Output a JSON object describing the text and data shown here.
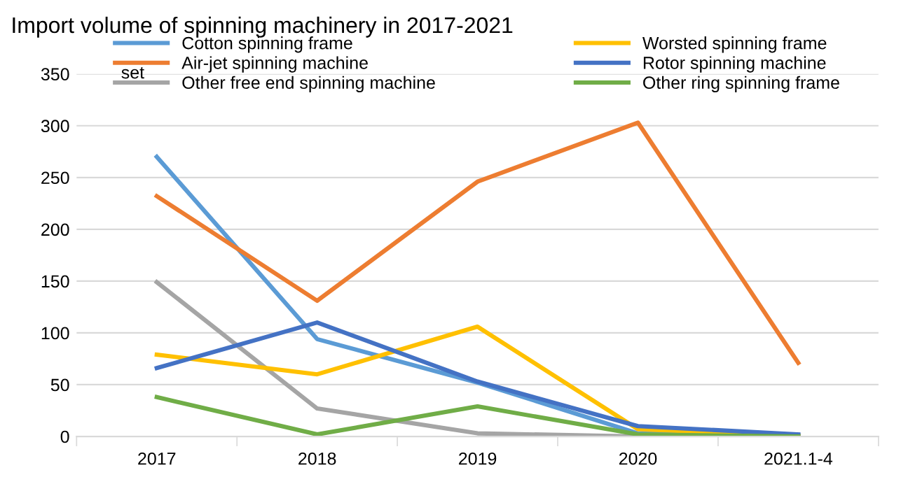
{
  "chart_data": {
    "type": "line",
    "title": "Import volume of spinning machinery in 2017-2021",
    "ylabel": "set",
    "categories": [
      "2017",
      "2018",
      "2019",
      "2020",
      "2021.1-4"
    ],
    "series": [
      {
        "name": "Cotton spinning frame",
        "color": "#5b9bd5",
        "values": [
          270,
          94,
          52,
          3,
          1
        ]
      },
      {
        "name": "Air-jet spinning machine",
        "color": "#ed7d31",
        "values": [
          232,
          131,
          246,
          303,
          71
        ]
      },
      {
        "name": "Other free end spinning machine",
        "color": "#a5a5a5",
        "values": [
          149,
          27,
          3,
          0,
          0
        ]
      },
      {
        "name": "Worsted spinning frame",
        "color": "#ffc000",
        "values": [
          79,
          60,
          106,
          7,
          1
        ]
      },
      {
        "name": "Rotor spinning machine",
        "color": "#4472c4",
        "values": [
          66,
          110,
          53,
          10,
          2
        ]
      },
      {
        "name": "Other ring spinning frame",
        "color": "#70ad47",
        "values": [
          38,
          2,
          29,
          2,
          0
        ]
      }
    ],
    "ylim": [
      0,
      350
    ],
    "yticks": [
      0,
      50,
      100,
      150,
      200,
      250,
      300,
      350
    ],
    "grid": "y",
    "legend": "top",
    "marker": "none",
    "line_style": "solid"
  }
}
